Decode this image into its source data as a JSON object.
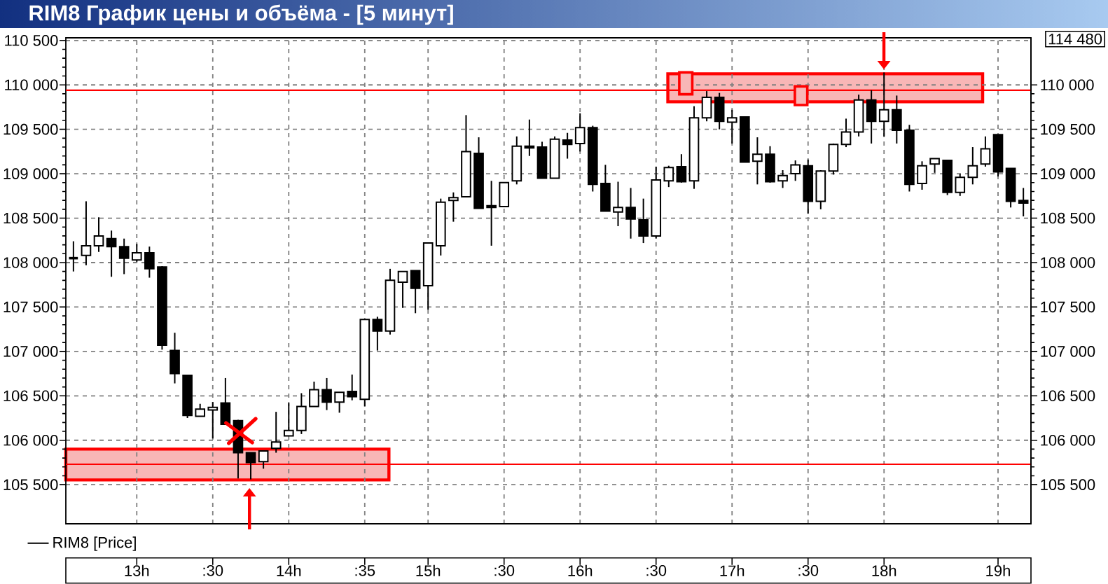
{
  "chart_data": {
    "type": "candlestick",
    "title": "RIM8 График цены и объёма - [5 минут]",
    "categories": [
      null,
      null,
      null,
      null,
      null,
      "13h",
      null,
      null,
      null,
      null,
      null,
      ":30",
      null,
      null,
      null,
      null,
      null,
      "14h",
      null,
      null,
      null,
      null,
      null,
      ":35",
      null,
      null,
      null,
      null,
      "15h",
      null,
      null,
      null,
      null,
      null,
      ":30",
      null,
      null,
      null,
      null,
      null,
      "16h",
      null,
      null,
      null,
      null,
      null,
      ":30",
      null,
      null,
      null,
      null,
      null,
      "17h",
      null,
      null,
      null,
      null,
      null,
      ":30",
      null,
      null,
      null,
      null,
      null,
      "18h",
      null,
      null,
      null,
      null,
      null,
      null,
      null,
      null,
      "19h",
      null,
      null
    ],
    "series": [
      {
        "name": "RIM8 [Price]",
        "color": "#000000",
        "ohlc": [
          [
            108050,
            108240,
            107900,
            108050
          ],
          [
            108080,
            108690,
            107970,
            108190
          ],
          [
            108190,
            108510,
            108120,
            108300
          ],
          [
            108270,
            108360,
            107840,
            108180
          ],
          [
            108180,
            108270,
            107870,
            108050
          ],
          [
            108030,
            108210,
            108010,
            108110
          ],
          [
            108110,
            108180,
            107830,
            107930
          ],
          [
            107950,
            107960,
            107020,
            107070
          ],
          [
            107010,
            107210,
            106640,
            106750
          ],
          [
            106730,
            106730,
            106250,
            106280
          ],
          [
            106270,
            106410,
            106270,
            106350
          ],
          [
            106340,
            106430,
            106020,
            106370
          ],
          [
            106420,
            106700,
            106180,
            106180
          ],
          [
            106220,
            106230,
            105570,
            105860
          ],
          [
            105860,
            105860,
            105560,
            105750
          ],
          [
            105760,
            105880,
            105680,
            105880
          ],
          [
            105910,
            106320,
            105860,
            105980
          ],
          [
            106050,
            106420,
            106050,
            106110
          ],
          [
            106110,
            106530,
            106070,
            106380
          ],
          [
            106380,
            106660,
            106380,
            106570
          ],
          [
            106570,
            106700,
            106340,
            106430
          ],
          [
            106430,
            106540,
            106310,
            106540
          ],
          [
            106550,
            106740,
            106450,
            106490
          ],
          [
            106460,
            107360,
            106380,
            107360
          ],
          [
            107360,
            107390,
            107010,
            107230
          ],
          [
            107230,
            107930,
            107190,
            107800
          ],
          [
            107780,
            107900,
            107490,
            107900
          ],
          [
            107910,
            107910,
            107430,
            107710
          ],
          [
            107740,
            108220,
            107470,
            108220
          ],
          [
            108190,
            108720,
            108080,
            108680
          ],
          [
            108700,
            108790,
            108460,
            108730
          ],
          [
            108740,
            109660,
            108740,
            109250
          ],
          [
            109230,
            109410,
            108610,
            108610
          ],
          [
            108640,
            108920,
            108190,
            108620
          ],
          [
            108630,
            108900,
            108630,
            108900
          ],
          [
            108920,
            109420,
            108880,
            109310
          ],
          [
            109310,
            109610,
            109200,
            109290
          ],
          [
            109300,
            109360,
            108950,
            108950
          ],
          [
            108950,
            109420,
            108950,
            109390
          ],
          [
            109380,
            109460,
            109170,
            109330
          ],
          [
            109340,
            109680,
            109250,
            109520
          ],
          [
            109520,
            109540,
            108800,
            108880
          ],
          [
            108890,
            109100,
            108580,
            108580
          ],
          [
            108570,
            108910,
            108410,
            108620
          ],
          [
            108620,
            108840,
            108270,
            108490
          ],
          [
            108480,
            108720,
            108220,
            108300
          ],
          [
            108300,
            109080,
            108270,
            108930
          ],
          [
            108920,
            109090,
            108850,
            109070
          ],
          [
            109080,
            109220,
            108900,
            108910
          ],
          [
            108920,
            109760,
            108830,
            109630
          ],
          [
            109630,
            109930,
            109590,
            109860
          ],
          [
            109860,
            109910,
            109500,
            109590
          ],
          [
            109580,
            109720,
            109340,
            109630
          ],
          [
            109640,
            109640,
            109130,
            109130
          ],
          [
            109140,
            109410,
            108880,
            109220
          ],
          [
            109220,
            109310,
            108900,
            108910
          ],
          [
            108920,
            109040,
            108840,
            108980
          ],
          [
            109000,
            109150,
            108920,
            109100
          ],
          [
            109090,
            109160,
            108550,
            108690
          ],
          [
            108690,
            109040,
            108600,
            109030
          ],
          [
            109030,
            109340,
            108990,
            109330
          ],
          [
            109330,
            109620,
            109300,
            109470
          ],
          [
            109470,
            109890,
            109420,
            109830
          ],
          [
            109830,
            109940,
            109340,
            109590
          ],
          [
            109590,
            110140,
            109420,
            109720
          ],
          [
            109720,
            109880,
            109340,
            109490
          ],
          [
            109490,
            109550,
            108800,
            108880
          ],
          [
            108890,
            109140,
            108820,
            109090
          ],
          [
            109110,
            109170,
            109010,
            109170
          ],
          [
            109150,
            109150,
            108760,
            108790
          ],
          [
            108790,
            109000,
            108750,
            108960
          ],
          [
            108960,
            109300,
            108880,
            109090
          ],
          [
            109110,
            109420,
            109080,
            109280
          ],
          [
            109440,
            109440,
            108970,
            109020
          ],
          [
            109060,
            109060,
            108620,
            108690
          ],
          [
            108700,
            108840,
            108520,
            108670
          ]
        ]
      }
    ],
    "ylim": [
      105060,
      110530
    ],
    "yticks": [
      {
        "value": 105500,
        "label": "105 500"
      },
      {
        "value": 106000,
        "label": "106 000"
      },
      {
        "value": 106500,
        "label": "106 500"
      },
      {
        "value": 107000,
        "label": "107 000"
      },
      {
        "value": 107500,
        "label": "107 500"
      },
      {
        "value": 108000,
        "label": "108 000"
      },
      {
        "value": 108500,
        "label": "108 500"
      },
      {
        "value": 109000,
        "label": "109 000"
      },
      {
        "value": 109500,
        "label": "109 500"
      },
      {
        "value": 110000,
        "label": "110 000"
      },
      {
        "value": 110500,
        "label": "110 500"
      }
    ],
    "y2lim": [
      105060,
      110530
    ],
    "y2ticks": [
      {
        "value": 105500,
        "label": "105 500"
      },
      {
        "value": 106000,
        "label": "106 000"
      },
      {
        "value": 106500,
        "label": "106 500"
      },
      {
        "value": 107000,
        "label": "107 000"
      },
      {
        "value": 107500,
        "label": "107 500"
      },
      {
        "value": 108000,
        "label": "108 000"
      },
      {
        "value": 108500,
        "label": "108 500"
      },
      {
        "value": 109000,
        "label": "109 000"
      },
      {
        "value": 109500,
        "label": "109 500"
      },
      {
        "value": 110000,
        "label": "110 000"
      }
    ],
    "grid": true,
    "legend": "bottom",
    "ref_lines": [
      {
        "axis": "y",
        "value": 109940,
        "color": "#ff0000"
      },
      {
        "axis": "y",
        "value": 105730,
        "color": "#ff0000"
      }
    ],
    "annotations": [
      "114 480"
    ]
  }
}
